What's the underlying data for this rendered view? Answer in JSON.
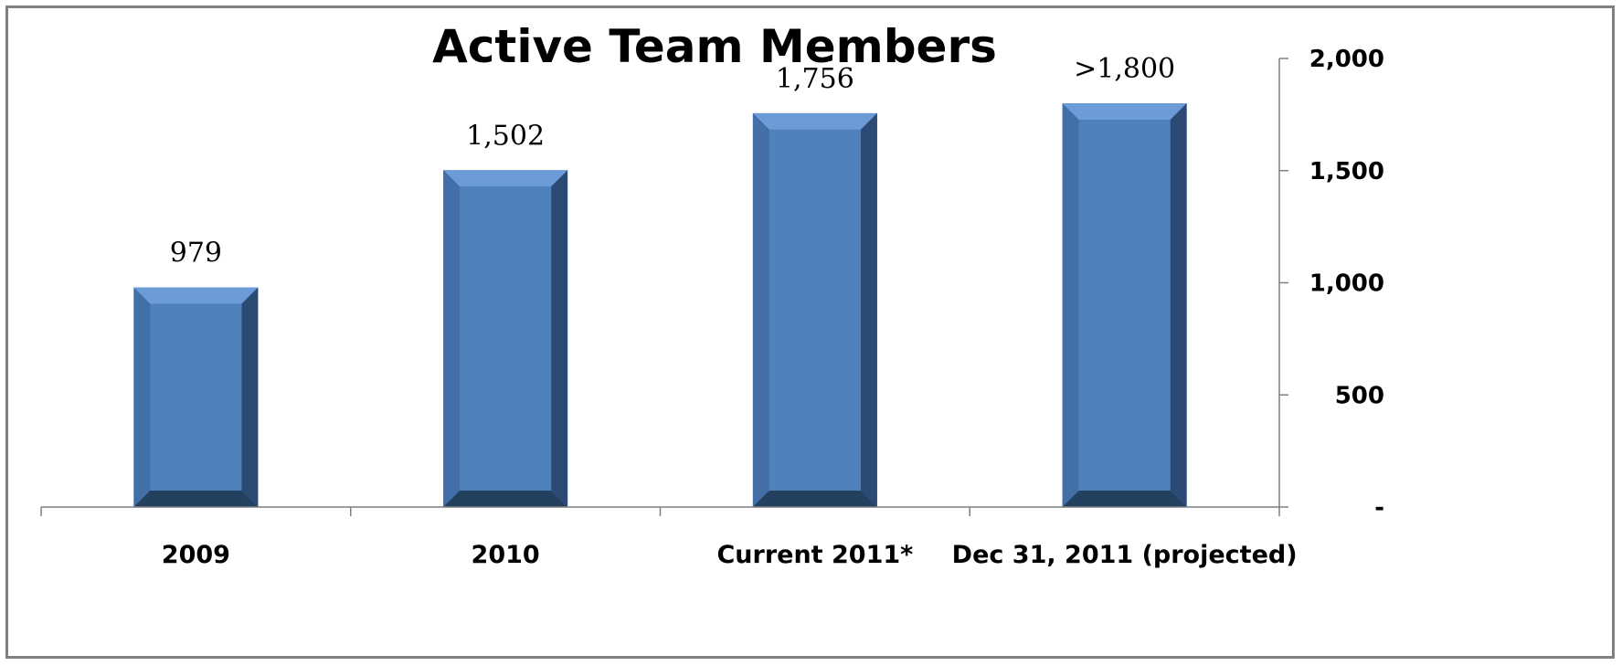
{
  "chart_data": {
    "type": "bar",
    "title": "Active Team Members",
    "categories": [
      "2009",
      "2010",
      "Current 2011*",
      "Dec 31, 2011 (projected)"
    ],
    "values": [
      979,
      1502,
      1756,
      1800
    ],
    "data_labels": [
      "979",
      "1,502",
      "1,756",
      ">1,800"
    ],
    "xlabel": "",
    "ylabel": "",
    "ylim": [
      0,
      2000
    ],
    "y_ticks": [
      0,
      500,
      1000,
      1500,
      2000
    ],
    "y_tick_labels": [
      "-",
      "500",
      "1,000",
      "1,500",
      "2,000"
    ],
    "y_axis_side": "right",
    "grid": false,
    "legend": "none",
    "colors": {
      "bar_face": "#4f81bd",
      "bar_top": "#6c9bd8",
      "bar_left": "#426fa8",
      "bar_right": "#2b4a74",
      "bar_bottom": "#24405f",
      "axis": "#7f7f7f"
    }
  }
}
